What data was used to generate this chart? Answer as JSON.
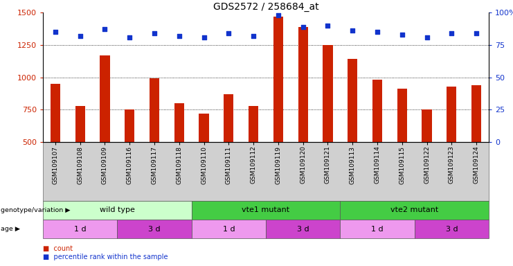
{
  "title": "GDS2572 / 258684_at",
  "samples": [
    "GSM109107",
    "GSM109108",
    "GSM109109",
    "GSM109116",
    "GSM109117",
    "GSM109118",
    "GSM109110",
    "GSM109111",
    "GSM109112",
    "GSM109119",
    "GSM109120",
    "GSM109121",
    "GSM109113",
    "GSM109114",
    "GSM109115",
    "GSM109122",
    "GSM109123",
    "GSM109124"
  ],
  "counts": [
    950,
    780,
    1170,
    750,
    990,
    800,
    720,
    870,
    780,
    1470,
    1390,
    1250,
    1140,
    980,
    910,
    750,
    930,
    940
  ],
  "percentiles": [
    85,
    82,
    87,
    81,
    84,
    82,
    81,
    84,
    82,
    98,
    89,
    90,
    86,
    85,
    83,
    81,
    84,
    84
  ],
  "bar_bottom": 500,
  "ylim_left": [
    500,
    1500
  ],
  "ylim_right": [
    0,
    100
  ],
  "yticks_left": [
    500,
    750,
    1000,
    1250,
    1500
  ],
  "yticks_right": [
    0,
    25,
    50,
    75,
    100
  ],
  "bar_color": "#cc2200",
  "dot_color": "#1133cc",
  "xtick_bg_color": "#d0d0d0",
  "genotype_groups": [
    {
      "label": "wild type",
      "start": 0,
      "end": 6,
      "color": "#ccffcc"
    },
    {
      "label": "vte1 mutant",
      "start": 6,
      "end": 12,
      "color": "#44cc44"
    },
    {
      "label": "vte2 mutant",
      "start": 12,
      "end": 18,
      "color": "#44cc44"
    }
  ],
  "age_groups": [
    {
      "label": "1 d",
      "start": 0,
      "end": 3,
      "color": "#ee99ee"
    },
    {
      "label": "3 d",
      "start": 3,
      "end": 6,
      "color": "#cc44cc"
    },
    {
      "label": "1 d",
      "start": 6,
      "end": 9,
      "color": "#ee99ee"
    },
    {
      "label": "3 d",
      "start": 9,
      "end": 12,
      "color": "#cc44cc"
    },
    {
      "label": "1 d",
      "start": 12,
      "end": 15,
      "color": "#ee99ee"
    },
    {
      "label": "3 d",
      "start": 15,
      "end": 18,
      "color": "#cc44cc"
    }
  ]
}
